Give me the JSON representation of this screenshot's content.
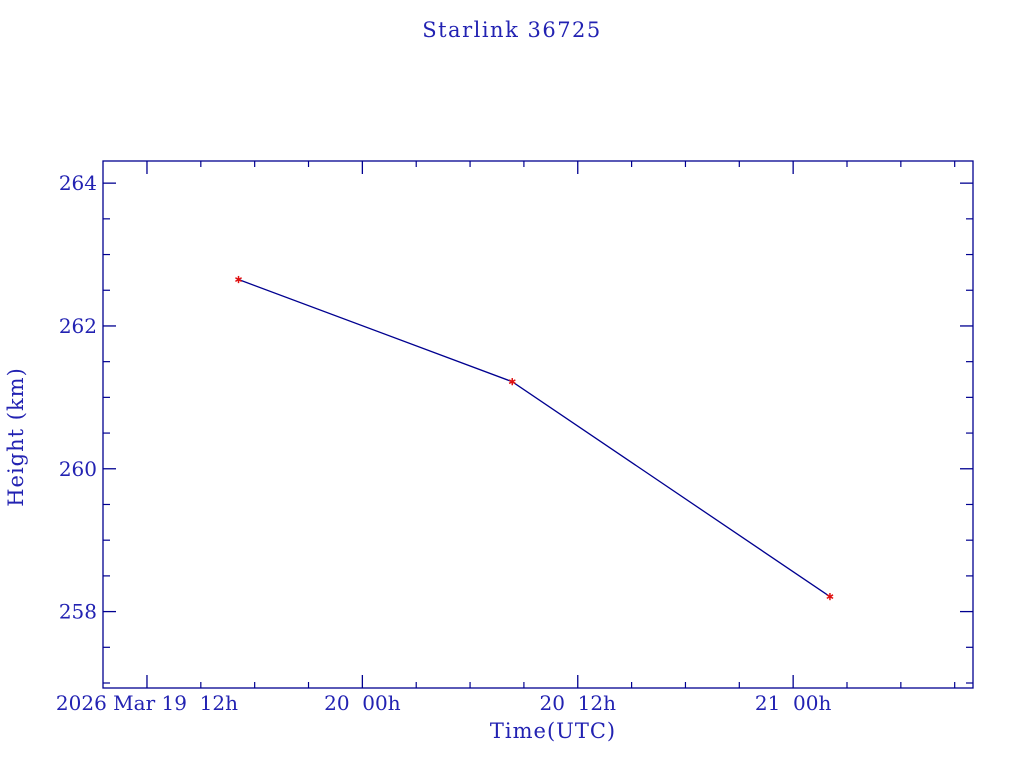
{
  "page": {
    "title": "Starlink 36725"
  },
  "chart_data": {
    "type": "line",
    "title": "Starlink 36725",
    "xlabel": "Time(UTC)",
    "ylabel": "Height (km)",
    "grid": false,
    "legend": false,
    "x_axis": {
      "unit": "hours since 2026 Mar 19 12:00 UTC",
      "range": [
        -2.45,
        46.02
      ],
      "major_ticks": [
        {
          "value": 0,
          "label": "2026 Mar 19  12h"
        },
        {
          "value": 12,
          "label": "20  00h"
        },
        {
          "value": 24,
          "label": "20  12h"
        },
        {
          "value": 36,
          "label": "21  00h"
        }
      ],
      "minor_tick_step": 3
    },
    "y_axis": {
      "unit": "km",
      "range": [
        256.93,
        264.31
      ],
      "major_ticks": [
        {
          "value": 258,
          "label": "258"
        },
        {
          "value": 260,
          "label": "260"
        },
        {
          "value": 262,
          "label": "262"
        },
        {
          "value": 264,
          "label": "264"
        }
      ],
      "minor_tick_step": 0.5
    },
    "series": [
      {
        "name": "height",
        "marker": "asterisk",
        "points": [
          {
            "x": 5.1,
            "y": 262.65,
            "approx_time_utc": "2026-03-19 ~17:05"
          },
          {
            "x": 20.35,
            "y": 261.22,
            "approx_time_utc": "2026-03-20 ~08:20"
          },
          {
            "x": 38.05,
            "y": 258.21,
            "approx_time_utc": "2026-03-21 ~02:05"
          }
        ]
      }
    ],
    "colors": {
      "text": "#2222b2",
      "axis": "#000090",
      "line": "#000090",
      "marker": "#e01010"
    }
  }
}
